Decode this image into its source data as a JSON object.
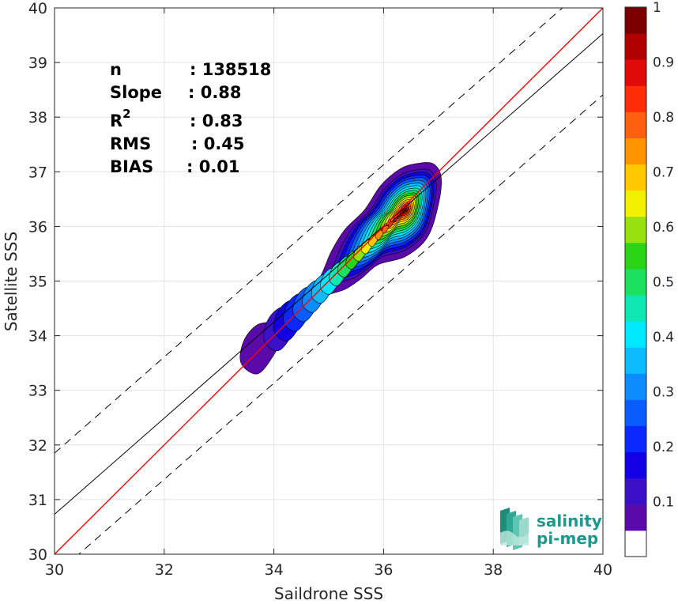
{
  "chart_data": {
    "type": "density-scatter",
    "title": "",
    "xlabel": "Saildrone SSS",
    "ylabel": "Satellite SSS",
    "xlim": [
      30,
      40
    ],
    "ylim": [
      30,
      40
    ],
    "x_ticks": [
      30,
      32,
      34,
      36,
      38,
      40
    ],
    "y_ticks": [
      30,
      31,
      32,
      33,
      34,
      35,
      36,
      37,
      38,
      39,
      40
    ],
    "grid": true,
    "stats": [
      {
        "label": "n",
        "value": ": 138518"
      },
      {
        "label": "Slope",
        "value": ": 0.88"
      },
      {
        "label": "R",
        "sup": "2",
        "value": ": 0.83"
      },
      {
        "label": "RMS",
        "value": ": 0.45"
      },
      {
        "label": "BIAS",
        "value": ": 0.01"
      }
    ],
    "lines": {
      "identity": {
        "slope": 1.0,
        "intercept": 0.0,
        "color": "#ff0000"
      },
      "regression": {
        "slope": 0.88,
        "intercept": 4.33,
        "color": "#000000"
      },
      "upper_band": {
        "slope": 0.88,
        "intercept": 5.45,
        "dash": true
      },
      "lower_band": {
        "slope": 0.88,
        "intercept": 3.21,
        "dash": true
      }
    },
    "density_center": {
      "x": 36.4,
      "y": 36.3
    },
    "density_levels": [
      0.05,
      0.1,
      0.15,
      0.2,
      0.25,
      0.3,
      0.35,
      0.4,
      0.45,
      0.5,
      0.55,
      0.6,
      0.65,
      0.7,
      0.75,
      0.8,
      0.85,
      0.9,
      0.95
    ],
    "colorbar": {
      "ticks": [
        "0.1",
        "0.2",
        "0.3",
        "0.4",
        "0.5",
        "0.6",
        "0.7",
        "0.8",
        "0.9",
        "1"
      ],
      "tick_values": [
        0.1,
        0.2,
        0.3,
        0.4,
        0.5,
        0.6,
        0.7,
        0.8,
        0.9,
        1.0
      ],
      "colors": [
        "#ffffff",
        "#5a0aa8",
        "#3a10c8",
        "#1400e6",
        "#0a28ff",
        "#0a5cff",
        "#0d8cff",
        "#0dbcff",
        "#00e8ff",
        "#10e8b4",
        "#1ee060",
        "#2cd418",
        "#98e010",
        "#f0f000",
        "#ffc800",
        "#ff9400",
        "#ff6010",
        "#ff2c0a",
        "#e00a0a",
        "#b00000",
        "#7a0000"
      ]
    }
  },
  "logo": {
    "line1": "salinity",
    "line2": "pi-mep"
  }
}
